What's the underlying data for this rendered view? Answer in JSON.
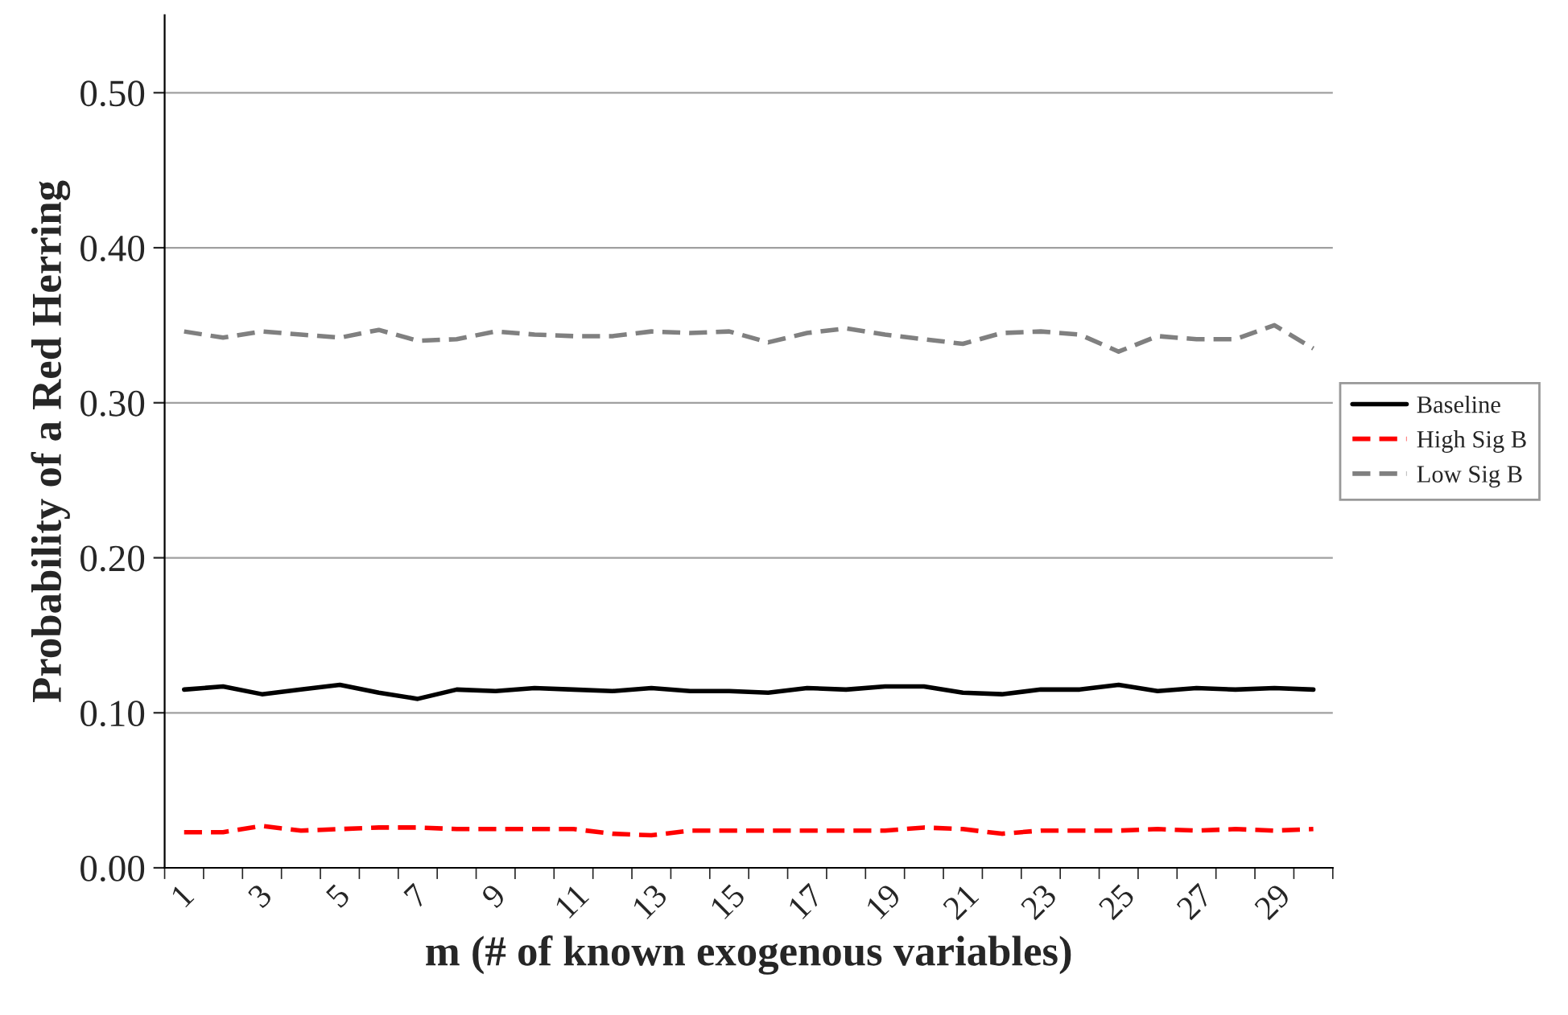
{
  "chart_data": {
    "type": "line",
    "xlabel": "m (# of known exogenous variables)",
    "ylabel": "Probability of a Red Herring",
    "categories": [
      "1",
      null,
      "3",
      null,
      "5",
      null,
      "7",
      null,
      "9",
      null,
      "11",
      null,
      "13",
      null,
      "15",
      null,
      "17",
      null,
      "19",
      null,
      "21",
      null,
      "23",
      null,
      "25",
      null,
      "27",
      null,
      "29",
      null
    ],
    "series": [
      {
        "name": "Baseline",
        "color": "#000000",
        "line_style": "solid",
        "values": [
          0.115,
          0.117,
          0.112,
          0.115,
          0.118,
          0.113,
          0.109,
          0.115,
          0.114,
          0.116,
          0.115,
          0.114,
          0.116,
          0.114,
          0.114,
          0.113,
          0.116,
          0.115,
          0.117,
          0.117,
          0.113,
          0.112,
          0.115,
          0.115,
          0.118,
          0.114,
          0.116,
          0.115,
          0.116,
          0.115
        ]
      },
      {
        "name": "High Sig B",
        "color": "#ff0000",
        "line_style": "dashed",
        "values": [
          0.023,
          0.023,
          0.027,
          0.024,
          0.025,
          0.026,
          0.026,
          0.025,
          0.025,
          0.025,
          0.025,
          0.022,
          0.021,
          0.024,
          0.024,
          0.024,
          0.024,
          0.024,
          0.024,
          0.026,
          0.025,
          0.022,
          0.024,
          0.024,
          0.024,
          0.025,
          0.024,
          0.025,
          0.024,
          0.025
        ]
      },
      {
        "name": "Low Sig B",
        "color": "#808080",
        "line_style": "dashed",
        "values": [
          0.346,
          0.342,
          0.346,
          0.344,
          0.342,
          0.347,
          0.34,
          0.341,
          0.346,
          0.344,
          0.343,
          0.343,
          0.346,
          0.345,
          0.346,
          0.339,
          0.345,
          0.348,
          0.344,
          0.341,
          0.338,
          0.345,
          0.346,
          0.344,
          0.333,
          0.343,
          0.341,
          0.341,
          0.35,
          0.335
        ]
      }
    ],
    "ylim": [
      0,
      0.55
    ],
    "yticks": [
      {
        "value": 0,
        "label": "0.00"
      },
      {
        "value": 0.1,
        "label": "0.10"
      },
      {
        "value": 0.2,
        "label": "0.20"
      },
      {
        "value": 0.3,
        "label": "0.30"
      },
      {
        "value": 0.4,
        "label": "0.40"
      },
      {
        "value": 0.5,
        "label": "0.50"
      }
    ],
    "grid": "y",
    "legend": "right"
  }
}
